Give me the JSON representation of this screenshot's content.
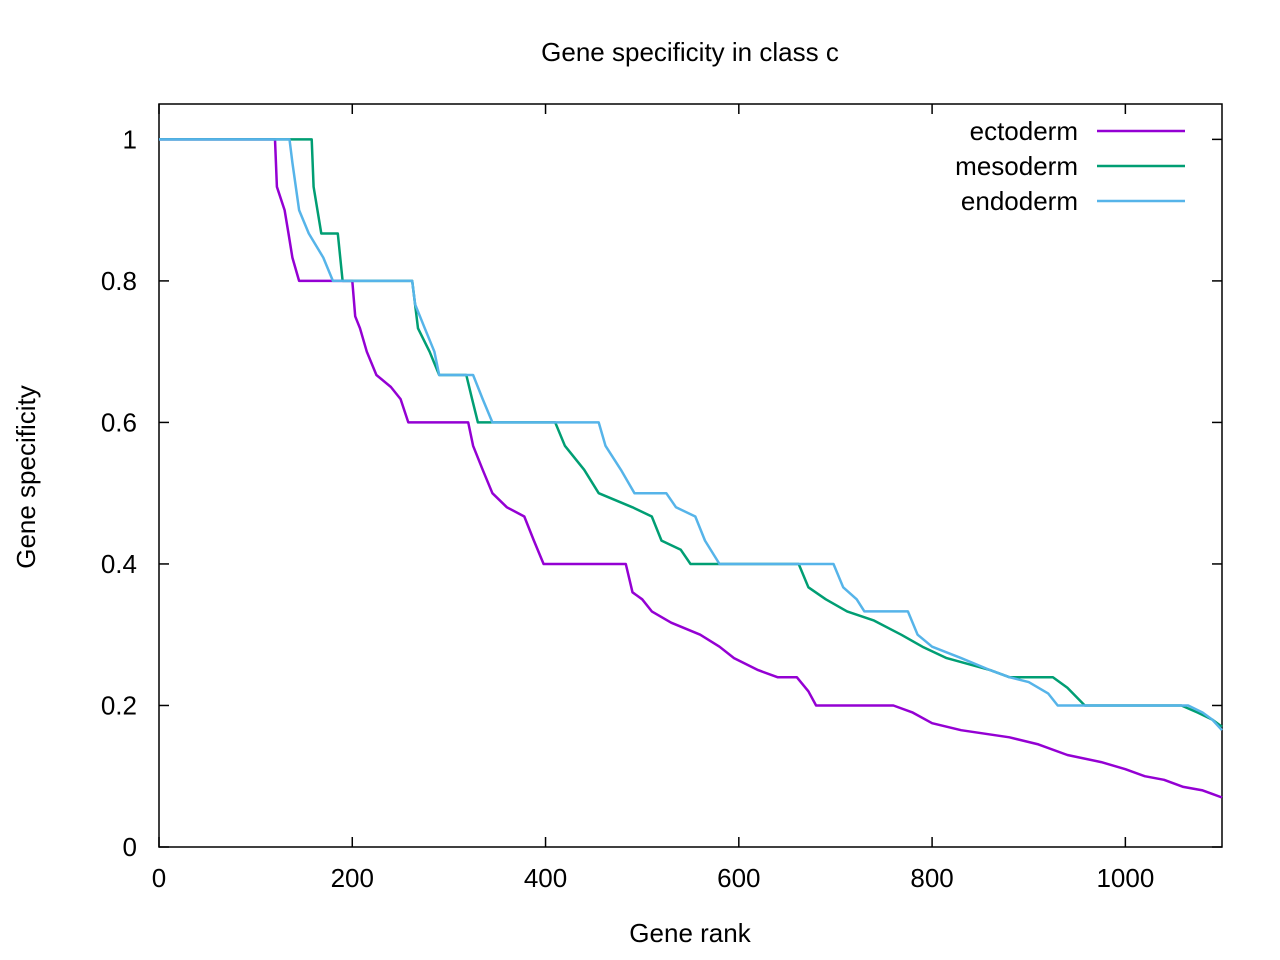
{
  "chart_data": {
    "type": "line",
    "title": "Gene specificity in class c",
    "xlabel": "Gene rank",
    "ylabel": "Gene specificity",
    "xlim": [
      0,
      1100
    ],
    "ylim": [
      0,
      1.05
    ],
    "xticks": [
      0,
      200,
      400,
      600,
      800,
      1000
    ],
    "xtick_labels": [
      "0",
      "200",
      "400",
      "600",
      "800",
      "1000"
    ],
    "yticks": [
      0,
      0.2,
      0.4,
      0.6,
      0.8,
      1
    ],
    "ytick_labels": [
      "0",
      "0.2",
      "0.4",
      "0.6",
      "0.8",
      "1"
    ],
    "grid": false,
    "legend_position": "top-right",
    "series": [
      {
        "name": "ectoderm",
        "color": "#9400d3",
        "points": [
          [
            0,
            1
          ],
          [
            120,
            1
          ],
          [
            122,
            0.933
          ],
          [
            130,
            0.9
          ],
          [
            134,
            0.867
          ],
          [
            138,
            0.833
          ],
          [
            145,
            0.8
          ],
          [
            200,
            0.8
          ],
          [
            203,
            0.75
          ],
          [
            208,
            0.733
          ],
          [
            215,
            0.7
          ],
          [
            225,
            0.667
          ],
          [
            240,
            0.65
          ],
          [
            250,
            0.633
          ],
          [
            258,
            0.6
          ],
          [
            320,
            0.6
          ],
          [
            325,
            0.567
          ],
          [
            335,
            0.533
          ],
          [
            345,
            0.5
          ],
          [
            360,
            0.48
          ],
          [
            378,
            0.467
          ],
          [
            388,
            0.433
          ],
          [
            398,
            0.4
          ],
          [
            483,
            0.4
          ],
          [
            490,
            0.36
          ],
          [
            500,
            0.35
          ],
          [
            510,
            0.333
          ],
          [
            530,
            0.317
          ],
          [
            560,
            0.3
          ],
          [
            580,
            0.283
          ],
          [
            595,
            0.267
          ],
          [
            620,
            0.25
          ],
          [
            640,
            0.24
          ],
          [
            660,
            0.24
          ],
          [
            672,
            0.22
          ],
          [
            680,
            0.2
          ],
          [
            760,
            0.2
          ],
          [
            780,
            0.19
          ],
          [
            800,
            0.175
          ],
          [
            830,
            0.165
          ],
          [
            880,
            0.155
          ],
          [
            910,
            0.145
          ],
          [
            940,
            0.13
          ],
          [
            975,
            0.12
          ],
          [
            1000,
            0.11
          ],
          [
            1020,
            0.1
          ],
          [
            1040,
            0.095
          ],
          [
            1060,
            0.085
          ],
          [
            1080,
            0.08
          ],
          [
            1090,
            0.075
          ],
          [
            1100,
            0.07
          ]
        ]
      },
      {
        "name": "mesoderm",
        "color": "#009e73",
        "points": [
          [
            0,
            1
          ],
          [
            158,
            1
          ],
          [
            160,
            0.933
          ],
          [
            168,
            0.867
          ],
          [
            185,
            0.867
          ],
          [
            190,
            0.8
          ],
          [
            262,
            0.8
          ],
          [
            268,
            0.733
          ],
          [
            280,
            0.7
          ],
          [
            290,
            0.667
          ],
          [
            318,
            0.667
          ],
          [
            324,
            0.633
          ],
          [
            330,
            0.6
          ],
          [
            410,
            0.6
          ],
          [
            420,
            0.567
          ],
          [
            440,
            0.533
          ],
          [
            455,
            0.5
          ],
          [
            490,
            0.48
          ],
          [
            510,
            0.467
          ],
          [
            520,
            0.433
          ],
          [
            540,
            0.42
          ],
          [
            550,
            0.4
          ],
          [
            662,
            0.4
          ],
          [
            672,
            0.367
          ],
          [
            690,
            0.35
          ],
          [
            712,
            0.333
          ],
          [
            740,
            0.32
          ],
          [
            768,
            0.3
          ],
          [
            790,
            0.283
          ],
          [
            815,
            0.267
          ],
          [
            860,
            0.25
          ],
          [
            880,
            0.24
          ],
          [
            925,
            0.24
          ],
          [
            940,
            0.225
          ],
          [
            958,
            0.2
          ],
          [
            1058,
            0.2
          ],
          [
            1075,
            0.19
          ],
          [
            1090,
            0.18
          ],
          [
            1100,
            0.17
          ]
        ]
      },
      {
        "name": "endoderm",
        "color": "#56b4e9",
        "points": [
          [
            0,
            1
          ],
          [
            135,
            1
          ],
          [
            138,
            0.967
          ],
          [
            145,
            0.9
          ],
          [
            155,
            0.867
          ],
          [
            170,
            0.833
          ],
          [
            180,
            0.8
          ],
          [
            262,
            0.8
          ],
          [
            265,
            0.767
          ],
          [
            275,
            0.733
          ],
          [
            285,
            0.7
          ],
          [
            290,
            0.667
          ],
          [
            325,
            0.667
          ],
          [
            335,
            0.633
          ],
          [
            345,
            0.6
          ],
          [
            455,
            0.6
          ],
          [
            462,
            0.567
          ],
          [
            478,
            0.533
          ],
          [
            492,
            0.5
          ],
          [
            525,
            0.5
          ],
          [
            535,
            0.48
          ],
          [
            555,
            0.467
          ],
          [
            565,
            0.433
          ],
          [
            580,
            0.4
          ],
          [
            698,
            0.4
          ],
          [
            708,
            0.367
          ],
          [
            722,
            0.35
          ],
          [
            730,
            0.333
          ],
          [
            775,
            0.333
          ],
          [
            785,
            0.3
          ],
          [
            800,
            0.283
          ],
          [
            830,
            0.267
          ],
          [
            860,
            0.25
          ],
          [
            880,
            0.24
          ],
          [
            900,
            0.233
          ],
          [
            920,
            0.217
          ],
          [
            930,
            0.2
          ],
          [
            1065,
            0.2
          ],
          [
            1080,
            0.19
          ],
          [
            1090,
            0.18
          ],
          [
            1100,
            0.165
          ]
        ]
      }
    ]
  }
}
